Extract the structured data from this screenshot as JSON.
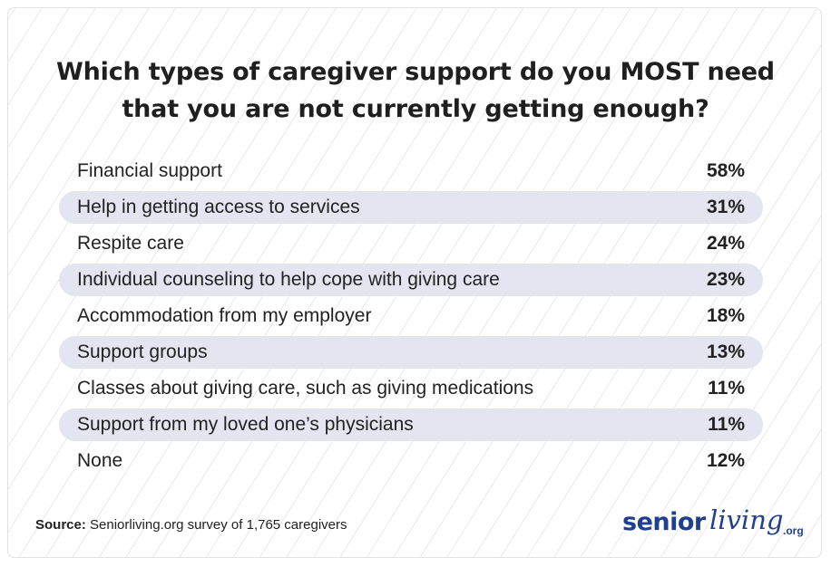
{
  "chart_data": {
    "type": "table",
    "title": "Which types of caregiver support do you MOST need that you are not currently getting enough?",
    "rows": [
      {
        "label": "Financial support",
        "value": "58%"
      },
      {
        "label": "Help in getting access to services",
        "value": "31%"
      },
      {
        "label": "Respite care",
        "value": "24%"
      },
      {
        "label": "Individual counseling to help cope with giving care",
        "value": "23%"
      },
      {
        "label": "Accommodation from my employer",
        "value": "18%"
      },
      {
        "label": "Support groups",
        "value": "13%"
      },
      {
        "label": "Classes about giving care, such as giving medications",
        "value": "11%"
      },
      {
        "label": "Support from my loved one’s physicians",
        "value": "11%"
      },
      {
        "label": "None",
        "value": "12%"
      }
    ]
  },
  "source": {
    "label": "Source:",
    "text": " Seniorliving.org survey of 1,765 caregivers"
  },
  "logo": {
    "part1": "senior",
    "part2": "living",
    "suffix": ".org"
  },
  "colors": {
    "row_shade": "#e3e6f1",
    "brand": "#1f3f8f"
  }
}
